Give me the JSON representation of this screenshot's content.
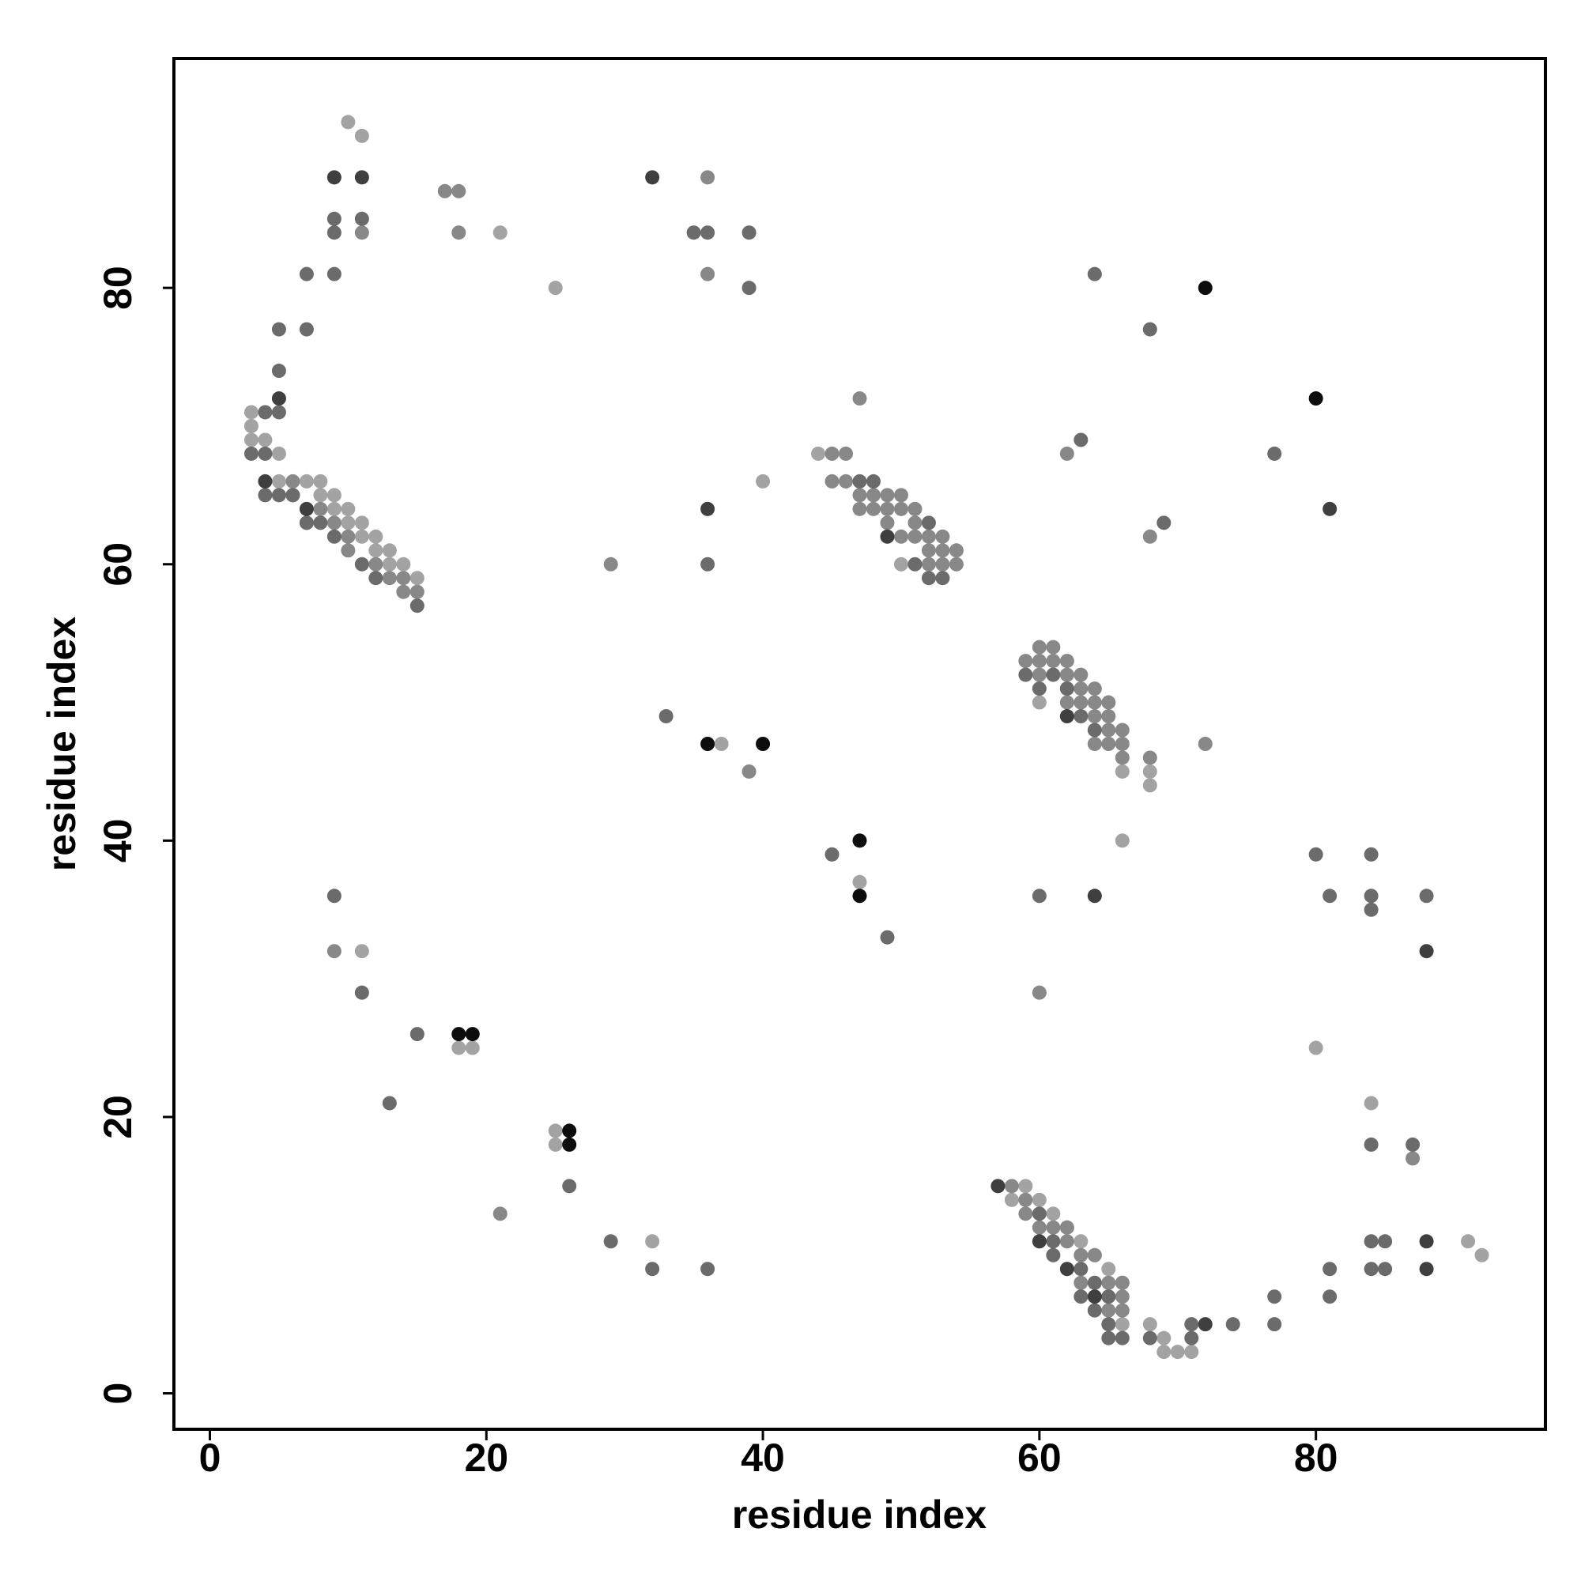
{
  "chart_data": {
    "type": "scatter",
    "x_label": "residue index",
    "y_label": "residue index",
    "xlim": [
      -2.6,
      96.6
    ],
    "ylim": [
      -2.6,
      96.6
    ],
    "xticks": [
      0,
      20,
      40,
      60,
      80
    ],
    "yticks": [
      0,
      20,
      40,
      60,
      80
    ],
    "series": [
      {
        "color": "#a3a3a3",
        "x": [
          10,
          11,
          3,
          3,
          3,
          4,
          5,
          5,
          7,
          8,
          8,
          9,
          9,
          10,
          10,
          11,
          11,
          12,
          12,
          13,
          13,
          14,
          15,
          21,
          25,
          44,
          40,
          50,
          37,
          60,
          66,
          68,
          68,
          66,
          47,
          80,
          11,
          18,
          19,
          25,
          25,
          32,
          59,
          58,
          60,
          61,
          62,
          63,
          64,
          65,
          66,
          66,
          68,
          69,
          69,
          70,
          71,
          84,
          91,
          92
        ],
        "y": [
          92,
          91,
          71,
          70,
          69,
          69,
          68,
          66,
          66,
          66,
          65,
          65,
          64,
          64,
          63,
          63,
          62,
          62,
          61,
          61,
          60,
          60,
          59,
          84,
          80,
          68,
          66,
          60,
          47,
          50,
          45,
          45,
          44,
          40,
          37,
          25,
          32,
          25,
          25,
          19,
          18,
          11,
          15,
          14,
          14,
          13,
          12,
          11,
          10,
          9,
          8,
          5,
          5,
          4,
          3,
          3,
          3,
          21,
          11,
          10
        ]
      },
      {
        "color": "#888888",
        "x": [
          11,
          6,
          6,
          8,
          9,
          10,
          10,
          12,
          13,
          14,
          14,
          15,
          17,
          18,
          18,
          36,
          36,
          47,
          45,
          46,
          45,
          46,
          47,
          48,
          49,
          50,
          47,
          48,
          49,
          50,
          51,
          49,
          51,
          50,
          51,
          52,
          53,
          52,
          53,
          54,
          52,
          53,
          54,
          29,
          39,
          62,
          68,
          59,
          60,
          61,
          60,
          61,
          62,
          62,
          60,
          62,
          63,
          63,
          64,
          62,
          63,
          64,
          65,
          64,
          65,
          65,
          66,
          64,
          65,
          66,
          66,
          68,
          72,
          60,
          9,
          21,
          87,
          58,
          59,
          59,
          60,
          61,
          62,
          62,
          63,
          64,
          63,
          65,
          66,
          66,
          65,
          66
        ],
        "y": [
          84,
          66,
          65,
          64,
          63,
          62,
          61,
          60,
          59,
          59,
          58,
          58,
          87,
          87,
          84,
          88,
          81,
          72,
          68,
          68,
          66,
          66,
          65,
          65,
          65,
          65,
          64,
          64,
          64,
          64,
          64,
          63,
          63,
          62,
          62,
          62,
          62,
          61,
          61,
          61,
          60,
          60,
          60,
          60,
          45,
          68,
          62,
          53,
          54,
          54,
          53,
          53,
          53,
          52,
          52,
          51,
          52,
          51,
          51,
          50,
          50,
          50,
          50,
          49,
          49,
          48,
          48,
          47,
          47,
          47,
          46,
          46,
          47,
          29,
          32,
          13,
          17,
          15,
          14,
          13,
          12,
          12,
          12,
          11,
          10,
          10,
          8,
          8,
          8,
          7,
          6,
          6
        ]
      },
      {
        "color": "#6b6b6b",
        "x": [
          9,
          11,
          9,
          7,
          9,
          5,
          7,
          5,
          5,
          4,
          3,
          4,
          4,
          5,
          6,
          7,
          7,
          8,
          9,
          11,
          12,
          15,
          35,
          36,
          39,
          39,
          47,
          48,
          51,
          52,
          52,
          53,
          36,
          33,
          64,
          68,
          77,
          63,
          69,
          59,
          61,
          60,
          62,
          63,
          64,
          45,
          49,
          60,
          80,
          84,
          81,
          84,
          84,
          88,
          9,
          11,
          15,
          13,
          26,
          29,
          32,
          36,
          60,
          61,
          61,
          63,
          64,
          65,
          63,
          65,
          64,
          65,
          65,
          66,
          68,
          71,
          71,
          74,
          77,
          77,
          81,
          81,
          84,
          87,
          84,
          85,
          84,
          85
        ],
        "y": [
          85,
          85,
          84,
          81,
          81,
          77,
          77,
          74,
          71,
          71,
          68,
          68,
          65,
          65,
          65,
          63,
          63,
          63,
          62,
          60,
          59,
          57,
          84,
          84,
          84,
          80,
          66,
          66,
          60,
          63,
          59,
          59,
          60,
          49,
          81,
          77,
          68,
          69,
          63,
          52,
          52,
          51,
          51,
          49,
          48,
          39,
          33,
          36,
          39,
          39,
          36,
          36,
          35,
          36,
          36,
          29,
          26,
          21,
          15,
          11,
          9,
          9,
          13,
          11,
          10,
          9,
          8,
          7,
          7,
          7,
          6,
          5,
          4,
          4,
          4,
          4,
          5,
          5,
          5,
          7,
          7,
          9,
          18,
          18,
          11,
          11,
          9,
          9
        ]
      },
      {
        "color": "#3f3f3f",
        "x": [
          9,
          11,
          5,
          4,
          7,
          32,
          36,
          49,
          62,
          81,
          64,
          88,
          57,
          60,
          62,
          64,
          72,
          88,
          88
        ],
        "y": [
          88,
          88,
          72,
          66,
          64,
          88,
          64,
          62,
          49,
          64,
          36,
          32,
          15,
          11,
          9,
          7,
          5,
          11,
          9
        ]
      },
      {
        "color": "#0d0d0d",
        "x": [
          36,
          40,
          72,
          80,
          47,
          47,
          18,
          19,
          26,
          26
        ],
        "y": [
          47,
          47,
          80,
          72,
          40,
          36,
          26,
          26,
          19,
          18
        ]
      }
    ]
  }
}
